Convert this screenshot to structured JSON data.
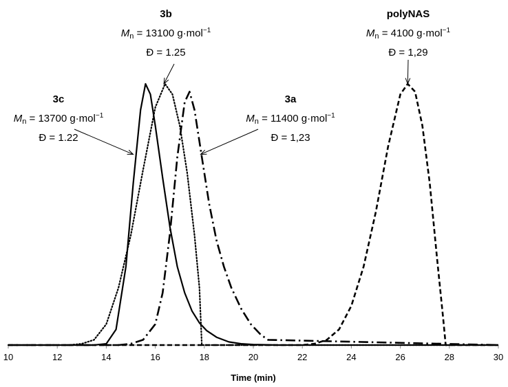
{
  "chart_data": {
    "type": "line",
    "xlabel": "Time (min)",
    "xlim": [
      10,
      30
    ],
    "xticks": [
      10,
      12,
      14,
      16,
      18,
      20,
      22,
      24,
      26,
      28,
      30
    ],
    "ylabel": "",
    "series": [
      {
        "name": "3c",
        "style": "solid",
        "x": [
          10,
          13.5,
          14.0,
          14.4,
          14.8,
          15.1,
          15.4,
          15.6,
          15.8,
          16.0,
          16.3,
          16.6,
          16.9,
          17.2,
          17.5,
          17.8,
          18.1,
          18.5,
          19.0,
          19.5,
          20.0,
          21.0,
          30
        ],
        "y": [
          0,
          0,
          0.005,
          0.06,
          0.3,
          0.62,
          0.9,
          1.0,
          0.96,
          0.84,
          0.64,
          0.45,
          0.3,
          0.2,
          0.13,
          0.085,
          0.055,
          0.03,
          0.012,
          0.005,
          0.002,
          0,
          0
        ]
      },
      {
        "name": "3b",
        "style": "dotted",
        "x": [
          10,
          12.5,
          13.0,
          13.5,
          14.0,
          14.5,
          15.0,
          15.5,
          16.0,
          16.4,
          16.7,
          17.0,
          17.3,
          17.6,
          17.8,
          17.9,
          30
        ],
        "y": [
          0,
          0,
          0.005,
          0.02,
          0.08,
          0.22,
          0.42,
          0.67,
          0.91,
          1.0,
          0.96,
          0.84,
          0.66,
          0.42,
          0.22,
          0,
          0
        ]
      },
      {
        "name": "3a",
        "style": "dash-dot",
        "x": [
          10,
          14.5,
          15.0,
          15.5,
          16.0,
          16.3,
          16.6,
          16.9,
          17.2,
          17.4,
          17.6,
          17.9,
          18.2,
          18.5,
          18.8,
          19.1,
          19.5,
          19.9,
          20.3,
          20.6,
          30
        ],
        "y": [
          0,
          0,
          0.005,
          0.02,
          0.08,
          0.2,
          0.43,
          0.72,
          0.93,
          0.97,
          0.9,
          0.72,
          0.54,
          0.4,
          0.3,
          0.22,
          0.14,
          0.08,
          0.04,
          0.02,
          0
        ]
      },
      {
        "name": "polyNAS",
        "style": "dashed",
        "x": [
          10,
          22.0,
          22.5,
          23.0,
          23.5,
          24.0,
          24.5,
          25.0,
          25.5,
          26.0,
          26.3,
          26.6,
          26.9,
          27.2,
          27.5,
          27.75,
          27.85,
          30
        ],
        "y": [
          0,
          0,
          0.005,
          0.02,
          0.06,
          0.15,
          0.3,
          0.51,
          0.76,
          0.96,
          1.0,
          0.97,
          0.84,
          0.62,
          0.33,
          0.1,
          0,
          0
        ]
      }
    ],
    "annotations": [
      {
        "id": "3b",
        "name": "3b",
        "mn_symbol": "M",
        "mn_sub": "n",
        "mn_value": " = 13100 g·mol",
        "mn_sup": "−1",
        "dispersity": "Đ = 1.25",
        "arrow_to": [
          16.35,
          1.0
        ]
      },
      {
        "id": "polyNAS",
        "name": "polyNAS",
        "mn_symbol": "M",
        "mn_sub": "n",
        "mn_value": " = 4100 g·mol",
        "mn_sup": "−1",
        "dispersity": "Đ = 1,29",
        "arrow_to": [
          26.3,
          1.0
        ]
      },
      {
        "id": "3c",
        "name": "3c",
        "mn_symbol": "M",
        "mn_sub": "n",
        "mn_value": " = 13700 g·mol",
        "mn_sup": "−1",
        "dispersity": "Đ = 1.22",
        "arrow_to": [
          15.1,
          0.73
        ]
      },
      {
        "id": "3a",
        "name": "3a",
        "mn_symbol": "M",
        "mn_sub": "n",
        "mn_value": " = 11400 g·mol",
        "mn_sup": "−1",
        "dispersity": "Đ = 1,23",
        "arrow_to": [
          17.85,
          0.73
        ]
      }
    ]
  }
}
